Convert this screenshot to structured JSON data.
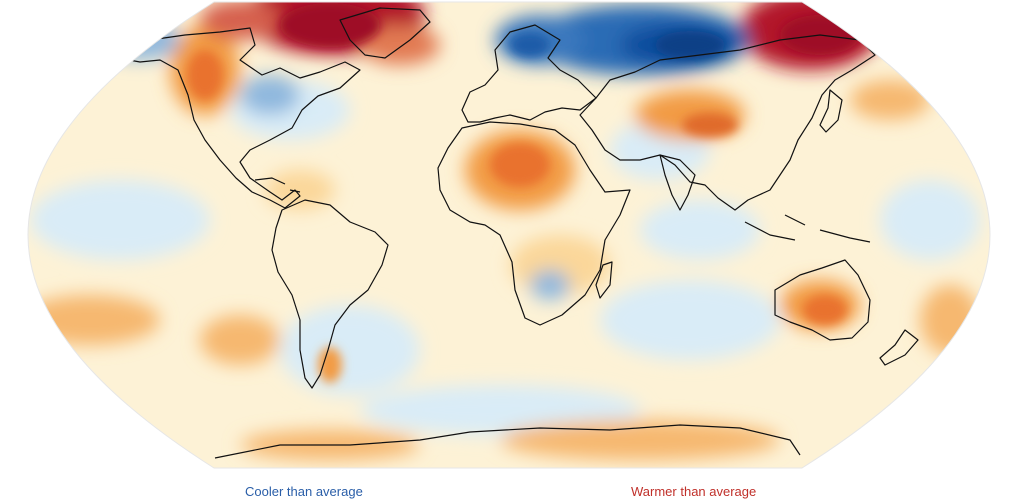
{
  "legend": {
    "cool_label": "Cooler than average",
    "warm_label": "Warmer than average",
    "cool_color": "#2a5ea8",
    "warm_color": "#c0302a"
  },
  "map": {
    "projection": "Robinson",
    "background_color": "#fdf2d6",
    "coastline_color": "#111111",
    "anomaly_colors": {
      "strong_cool": "#0d4e9e",
      "cool": "#5e97d0",
      "slight_cool": "#d9ecf7",
      "neutral": "#fdf2d6",
      "slight_warm": "#fbd79a",
      "warm": "#f29b45",
      "strong_warm": "#b2182b"
    }
  }
}
